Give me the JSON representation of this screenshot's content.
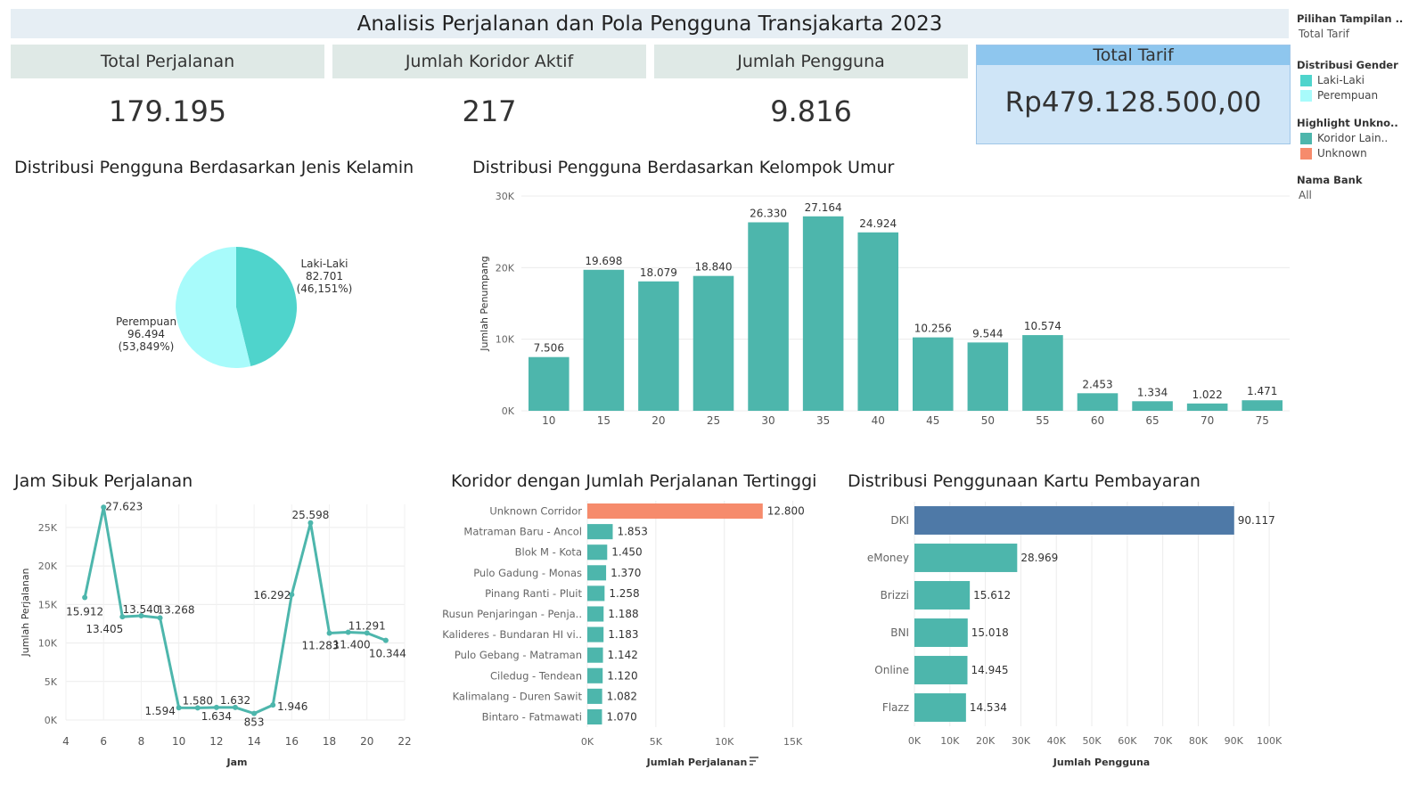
{
  "header": {
    "title": "Analisis Perjalanan dan Pola Pengguna Transjakarta 2023"
  },
  "kpis": {
    "total_perjalanan": {
      "label": "Total Perjalanan",
      "value": "179.195"
    },
    "jumlah_koridor": {
      "label": "Jumlah Koridor Aktif",
      "value": "217"
    },
    "jumlah_pengguna": {
      "label": "Jumlah Pengguna",
      "value": "9.816"
    },
    "total_tarif": {
      "label": "Total Tarif",
      "value": "Rp479.128.500,00"
    }
  },
  "filters": {
    "pilihan_tampilan": {
      "label": "Pilihan Tampilan ..",
      "value": "Total Tarif"
    },
    "distribusi_gender": {
      "label": "Distribusi Gender",
      "items": [
        {
          "label": "Laki-Laki",
          "color": "#4fd4cc"
        },
        {
          "label": "Perempuan",
          "color": "#a8fbfb"
        }
      ]
    },
    "highlight": {
      "label": "Highlight Unkno..",
      "items": [
        {
          "label": "Koridor Lain..",
          "color": "#4db6ac"
        },
        {
          "label": "Unknown",
          "color": "#f68b6c"
        }
      ]
    },
    "nama_bank": {
      "label": "Nama Bank",
      "value": "All"
    }
  },
  "titles": {
    "gender": "Distribusi Pengguna Berdasarkan Jenis Kelamin",
    "umur": "Distribusi Pengguna Berdasarkan Kelompok Umur",
    "jam": "Jam Sibuk Perjalanan",
    "koridor": "Koridor dengan Jumlah Perjalanan Tertinggi",
    "kartu": "Distribusi Penggunaan Kartu Pembayaran"
  },
  "chart_data": [
    {
      "id": "gender",
      "type": "pie",
      "slices": [
        {
          "label": "Laki-Laki",
          "value": 82701,
          "value_label": "82.701",
          "pct_label": "(46,151%)",
          "color": "#4fd4cc"
        },
        {
          "label": "Perempuan",
          "value": 96494,
          "value_label": "96.494",
          "pct_label": "(53,849%)",
          "color": "#a8fbfb"
        }
      ]
    },
    {
      "id": "umur",
      "type": "bar",
      "categories": [
        "10",
        "15",
        "20",
        "25",
        "30",
        "35",
        "40",
        "45",
        "50",
        "55",
        "60",
        "65",
        "70",
        "75"
      ],
      "values": [
        7506,
        19698,
        18079,
        18840,
        26330,
        27164,
        24924,
        10256,
        9544,
        10574,
        2453,
        1334,
        1022,
        1471
      ],
      "value_labels": [
        "7.506",
        "19.698",
        "18.079",
        "18.840",
        "26.330",
        "27.164",
        "24.924",
        "10.256",
        "9.544",
        "10.574",
        "2.453",
        "1.334",
        "1.022",
        "1.471"
      ],
      "ylabel": "Jumlah Penumpang",
      "ylim": [
        0,
        30000
      ],
      "yticks": [
        0,
        10000,
        20000,
        30000
      ],
      "ytick_labels": [
        "0K",
        "10K",
        "20K",
        "30K"
      ],
      "color": "#4db6ac"
    },
    {
      "id": "jam",
      "type": "line",
      "x": [
        5,
        6,
        7,
        8,
        9,
        10,
        11,
        12,
        13,
        14,
        15,
        16,
        17,
        18,
        19,
        20,
        21
      ],
      "values": [
        15912,
        27623,
        13405,
        13540,
        13268,
        1594,
        1580,
        1634,
        1632,
        853,
        1946,
        16292,
        25598,
        11283,
        11400,
        11291,
        10344
      ],
      "value_labels": [
        "15.912",
        "27.623",
        "13.405",
        "13.540",
        "13.268",
        "1.594",
        "1.580",
        "1.634",
        "1.632",
        "853",
        "1.946",
        "16.292",
        "25.598",
        "11.283",
        "11.400",
        "11.291",
        "10.344"
      ],
      "xlabel": "Jam",
      "ylabel": "Jumlah Perjalanan",
      "xlim": [
        4,
        22
      ],
      "xticks": [
        4,
        6,
        8,
        10,
        12,
        14,
        16,
        18,
        20,
        22
      ],
      "ylim": [
        0,
        28000
      ],
      "yticks": [
        0,
        5000,
        10000,
        15000,
        20000,
        25000
      ],
      "ytick_labels": [
        "0K",
        "5K",
        "10K",
        "15K",
        "20K",
        "25K"
      ],
      "color": "#4db6ac"
    },
    {
      "id": "koridor",
      "type": "bar",
      "orientation": "horizontal",
      "categories": [
        "Unknown Corridor",
        "Matraman Baru - Ancol",
        "Blok M - Kota",
        "Pulo Gadung - Monas",
        "Pinang Ranti - Pluit",
        "Rusun Penjaringan - Penja..",
        "Kalideres - Bundaran HI vi..",
        "Pulo Gebang - Matraman",
        "Ciledug - Tendean",
        "Kalimalang - Duren Sawit",
        "Bintaro - Fatmawati"
      ],
      "values": [
        12800,
        1853,
        1450,
        1370,
        1258,
        1188,
        1183,
        1142,
        1120,
        1082,
        1070
      ],
      "value_labels": [
        "12.800",
        "1.853",
        "1.450",
        "1.370",
        "1.258",
        "1.188",
        "1.183",
        "1.142",
        "1.120",
        "1.082",
        "1.070"
      ],
      "xlabel": "Jumlah Perjalanan",
      "xlim": [
        0,
        16000
      ],
      "xticks": [
        0,
        5000,
        10000,
        15000
      ],
      "xtick_labels": [
        "0K",
        "5K",
        "10K",
        "15K"
      ],
      "colors": [
        "#f68b6c",
        "#4db6ac",
        "#4db6ac",
        "#4db6ac",
        "#4db6ac",
        "#4db6ac",
        "#4db6ac",
        "#4db6ac",
        "#4db6ac",
        "#4db6ac",
        "#4db6ac"
      ]
    },
    {
      "id": "kartu",
      "type": "bar",
      "orientation": "horizontal",
      "categories": [
        "DKI",
        "eMoney",
        "Brizzi",
        "BNI",
        "Online",
        "Flazz"
      ],
      "values": [
        90117,
        28969,
        15612,
        15018,
        14945,
        14534
      ],
      "value_labels": [
        "90.117",
        "28.969",
        "15.612",
        "15.018",
        "14.945",
        "14.534"
      ],
      "xlabel": "Jumlah Pengguna",
      "xlim": [
        0,
        105000
      ],
      "xticks": [
        0,
        10000,
        20000,
        30000,
        40000,
        50000,
        60000,
        70000,
        80000,
        90000,
        100000
      ],
      "xtick_labels": [
        "0K",
        "10K",
        "20K",
        "30K",
        "40K",
        "50K",
        "60K",
        "70K",
        "80K",
        "90K",
        "100K"
      ],
      "colors": [
        "#4e79a7",
        "#4db6ac",
        "#4db6ac",
        "#4db6ac",
        "#4db6ac",
        "#4db6ac"
      ]
    }
  ]
}
